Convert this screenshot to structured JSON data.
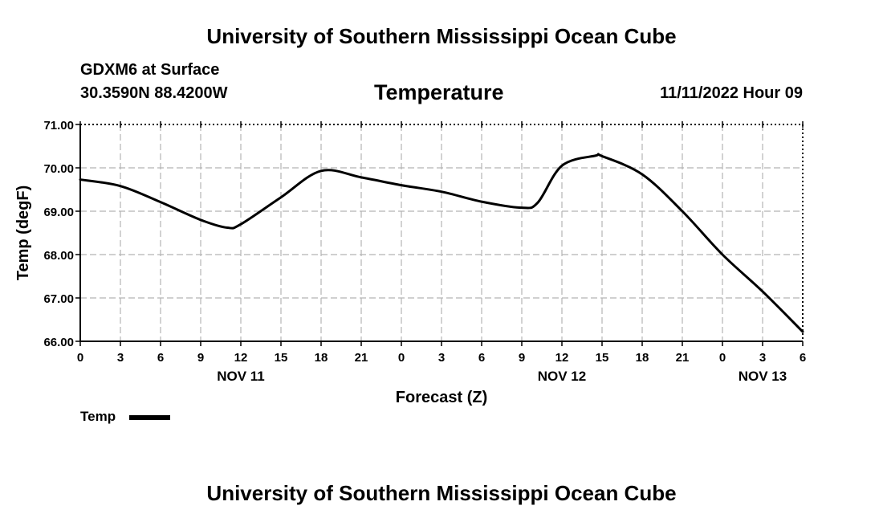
{
  "header": {
    "title": "University of Southern Mississippi Ocean Cube",
    "station": "GDXM6 at Surface",
    "coords": "30.3590N  88.4200W",
    "chart_title": "Temperature",
    "datetime": "11/11/2022 Hour 09"
  },
  "footer": {
    "title": "University of Southern Mississippi Ocean Cube"
  },
  "legend": {
    "label": "Temp"
  },
  "chart_data": {
    "type": "line",
    "title": "Temperature",
    "xlabel": "Forecast (Z)",
    "ylabel": "Temp (degF)",
    "ylim": [
      66.0,
      71.0
    ],
    "yticks": [
      "66.00",
      "67.00",
      "68.00",
      "69.00",
      "70.00",
      "71.00"
    ],
    "xlim_hours": [
      0,
      54
    ],
    "xtick_hours": [
      0,
      3,
      6,
      9,
      12,
      15,
      18,
      21,
      24,
      27,
      30,
      33,
      36,
      39,
      42,
      45,
      48,
      51,
      54
    ],
    "xtick_labels": [
      "0",
      "3",
      "6",
      "9",
      "12",
      "15",
      "18",
      "21",
      "0",
      "3",
      "6",
      "9",
      "12",
      "15",
      "18",
      "21",
      "0",
      "3",
      "6"
    ],
    "day_labels": [
      {
        "label": "NOV 11",
        "hour": 12
      },
      {
        "label": "NOV 12",
        "hour": 36
      },
      {
        "label": "NOV 13",
        "hour": 51
      }
    ],
    "grid": true,
    "series": [
      {
        "name": "Temp",
        "color": "#000000",
        "x": [
          0,
          3,
          6,
          9,
          11,
          12,
          15,
          18,
          21,
          24,
          27,
          30,
          33,
          34.2,
          36,
          38.5,
          39,
          42,
          45,
          48,
          51,
          54
        ],
        "y": [
          69.73,
          69.58,
          69.21,
          68.8,
          68.62,
          68.7,
          69.32,
          69.93,
          69.78,
          69.6,
          69.45,
          69.22,
          69.08,
          69.2,
          70.05,
          70.28,
          70.27,
          69.85,
          69.0,
          68.0,
          67.15,
          66.22
        ]
      }
    ]
  }
}
